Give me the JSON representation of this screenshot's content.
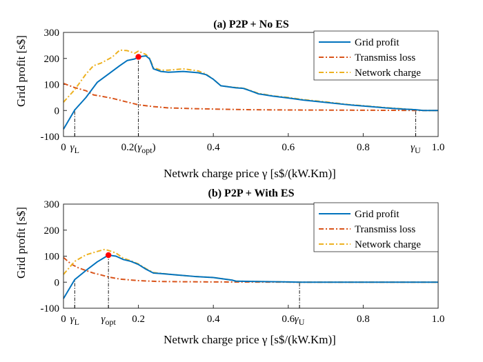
{
  "chart_data": [
    {
      "type": "line",
      "title": "(a) P2P + No ES",
      "xlabel": "Netwrk charge price γ [s$/(kW.Km)]",
      "ylabel": "Grid profit [s$]",
      "xlim": [
        0,
        1.0
      ],
      "ylim": [
        -100,
        300
      ],
      "yticks": [
        -100,
        0,
        100,
        200,
        300
      ],
      "xtick_labels": [
        {
          "x": 0,
          "label": "0"
        },
        {
          "x": 0.03,
          "label": "γL"
        },
        {
          "x": 0.2,
          "label": "0.2(γopt)"
        },
        {
          "x": 0.4,
          "label": "0.4"
        },
        {
          "x": 0.6,
          "label": "0.6"
        },
        {
          "x": 0.8,
          "label": "0.8"
        },
        {
          "x": 0.94,
          "label": "γU"
        },
        {
          "x": 1.0,
          "label": "1.0"
        }
      ],
      "legend": [
        "Grid profit",
        "Transmiss loss",
        "Network charge"
      ],
      "legend_position": "top-right",
      "markers": {
        "gamma_L": 0.03,
        "gamma_opt": 0.2,
        "gamma_U": 0.94
      },
      "optimum_point": {
        "x": 0.2,
        "y": 206
      },
      "series": [
        {
          "name": "Grid profit",
          "color": "#0072BD",
          "style": "solid",
          "x": [
            0,
            0.03,
            0.06,
            0.09,
            0.12,
            0.15,
            0.17,
            0.19,
            0.2,
            0.22,
            0.23,
            0.24,
            0.26,
            0.28,
            0.32,
            0.36,
            0.38,
            0.4,
            0.42,
            0.46,
            0.48,
            0.5,
            0.52,
            0.56,
            0.6,
            0.64,
            0.7,
            0.76,
            0.82,
            0.86,
            0.9,
            0.94,
            0.96,
            1.0
          ],
          "y": [
            -72,
            2,
            50,
            108,
            140,
            172,
            192,
            198,
            206,
            210,
            198,
            160,
            150,
            147,
            150,
            145,
            138,
            120,
            95,
            87,
            85,
            75,
            64,
            55,
            48,
            40,
            31,
            22,
            15,
            10,
            6,
            3,
            0,
            0
          ]
        },
        {
          "name": "Transmiss loss",
          "color": "#D95319",
          "style": "dashdot",
          "x": [
            0,
            0.03,
            0.06,
            0.08,
            0.1,
            0.13,
            0.16,
            0.2,
            0.24,
            0.28,
            0.35,
            0.42,
            0.5,
            0.6,
            0.7,
            0.8,
            0.9,
            0.94,
            1.0
          ],
          "y": [
            104,
            88,
            76,
            60,
            55,
            47,
            36,
            22,
            15,
            10,
            7,
            5,
            3,
            2,
            1.5,
            1,
            0.5,
            0,
            0
          ]
        },
        {
          "name": "Network charge",
          "color": "#EDB120",
          "style": "dashdot",
          "x": [
            0,
            0.03,
            0.06,
            0.08,
            0.1,
            0.13,
            0.15,
            0.17,
            0.19,
            0.2,
            0.22,
            0.23,
            0.24,
            0.26,
            0.28,
            0.32,
            0.36,
            0.38,
            0.4,
            0.42,
            0.46,
            0.48,
            0.5,
            0.52,
            0.56,
            0.6,
            0.64,
            0.7,
            0.76,
            0.82,
            0.86,
            0.9,
            0.94,
            0.96,
            1.0
          ],
          "y": [
            32,
            80,
            140,
            172,
            182,
            205,
            232,
            230,
            220,
            228,
            215,
            200,
            165,
            155,
            155,
            160,
            152,
            140,
            120,
            95,
            88,
            86,
            76,
            66,
            56,
            50,
            42,
            33,
            23,
            16,
            11,
            7,
            3,
            0,
            0
          ]
        }
      ]
    },
    {
      "type": "line",
      "title": "(b) P2P + With ES",
      "xlabel": "Netwrk charge price γ [s$/(kW.Km)]",
      "ylabel": "Grid profit [s$]",
      "xlim": [
        0,
        1.0
      ],
      "ylim": [
        -100,
        300
      ],
      "yticks": [
        -100,
        0,
        100,
        200,
        300
      ],
      "xtick_labels": [
        {
          "x": 0,
          "label": "0"
        },
        {
          "x": 0.03,
          "label": "γL"
        },
        {
          "x": 0.12,
          "label": "γopt"
        },
        {
          "x": 0.2,
          "label": "0.2"
        },
        {
          "x": 0.4,
          "label": "0.4"
        },
        {
          "x": 0.6,
          "label": "0.6"
        },
        {
          "x": 0.63,
          "label": "γU"
        },
        {
          "x": 0.8,
          "label": "0.8"
        },
        {
          "x": 1.0,
          "label": "1.0"
        }
      ],
      "legend": [
        "Grid profit",
        "Transmiss loss",
        "Network charge"
      ],
      "legend_position": "top-right",
      "markers": {
        "gamma_L": 0.03,
        "gamma_opt": 0.12,
        "gamma_U": 0.63
      },
      "optimum_point": {
        "x": 0.12,
        "y": 104
      },
      "series": [
        {
          "name": "Grid profit",
          "color": "#0072BD",
          "style": "solid",
          "x": [
            0,
            0.03,
            0.06,
            0.09,
            0.12,
            0.14,
            0.16,
            0.18,
            0.2,
            0.22,
            0.24,
            0.26,
            0.3,
            0.35,
            0.4,
            0.43,
            0.45,
            0.46,
            0.5,
            0.55,
            0.6,
            0.63,
            0.7,
            0.8,
            0.9,
            1.0
          ],
          "y": [
            -63,
            10,
            45,
            78,
            104,
            100,
            87,
            80,
            68,
            50,
            35,
            33,
            28,
            22,
            18,
            12,
            8,
            4,
            3,
            2,
            1,
            0,
            0,
            0,
            0,
            0
          ]
        },
        {
          "name": "Transmiss loss",
          "color": "#D95319",
          "style": "dashdot",
          "x": [
            0,
            0.02,
            0.04,
            0.06,
            0.08,
            0.1,
            0.12,
            0.15,
            0.2,
            0.25,
            0.3,
            0.4,
            0.5,
            0.6,
            0.63,
            0.8,
            1.0
          ],
          "y": [
            95,
            70,
            55,
            45,
            35,
            28,
            20,
            12,
            6,
            3,
            2,
            1,
            0.5,
            0.2,
            0,
            0,
            0
          ]
        },
        {
          "name": "Network charge",
          "color": "#EDB120",
          "style": "dashdot",
          "x": [
            0,
            0.03,
            0.06,
            0.09,
            0.11,
            0.12,
            0.14,
            0.16,
            0.18,
            0.2,
            0.22,
            0.24,
            0.26,
            0.3,
            0.35,
            0.4,
            0.43,
            0.45,
            0.46,
            0.5,
            0.55,
            0.6,
            0.63,
            0.7,
            0.8,
            0.9,
            1.0
          ],
          "y": [
            30,
            80,
            105,
            118,
            126,
            122,
            112,
            92,
            82,
            70,
            52,
            37,
            34,
            28,
            22,
            18,
            12,
            8,
            4,
            3,
            2,
            1,
            0,
            0,
            0,
            0,
            0
          ]
        }
      ]
    }
  ]
}
